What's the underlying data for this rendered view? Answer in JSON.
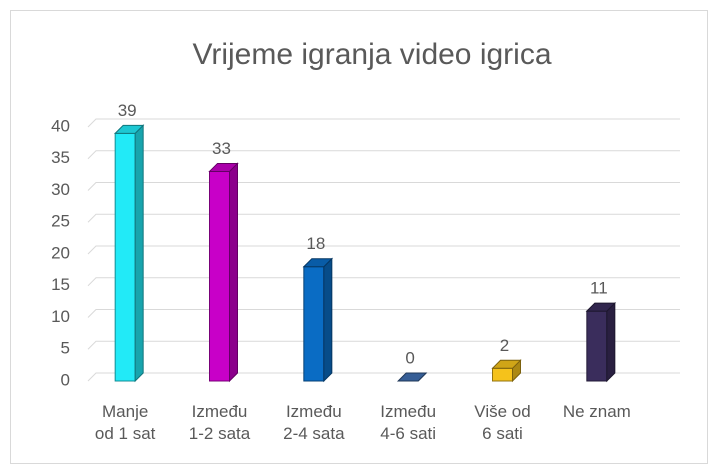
{
  "chart_data": {
    "type": "bar3d",
    "title": "Vrijeme igranja video igrica",
    "categories": [
      "Manje\nod 1 sat",
      "Između\n1-2 sata",
      "Između\n2-4 sata",
      "Između\n4-6 sati",
      "Više od\n6 sati",
      "Ne znam"
    ],
    "values": [
      39,
      33,
      18,
      0,
      2,
      11
    ],
    "colors": [
      "#22eaf7",
      "#c800c8",
      "#0a6cc4",
      "#3f6fb0",
      "#f5c21b",
      "#3a2d5c"
    ],
    "ylim": [
      0,
      40
    ],
    "yticks": [
      0,
      5,
      10,
      15,
      20,
      25,
      30,
      35,
      40
    ],
    "grid": true
  }
}
